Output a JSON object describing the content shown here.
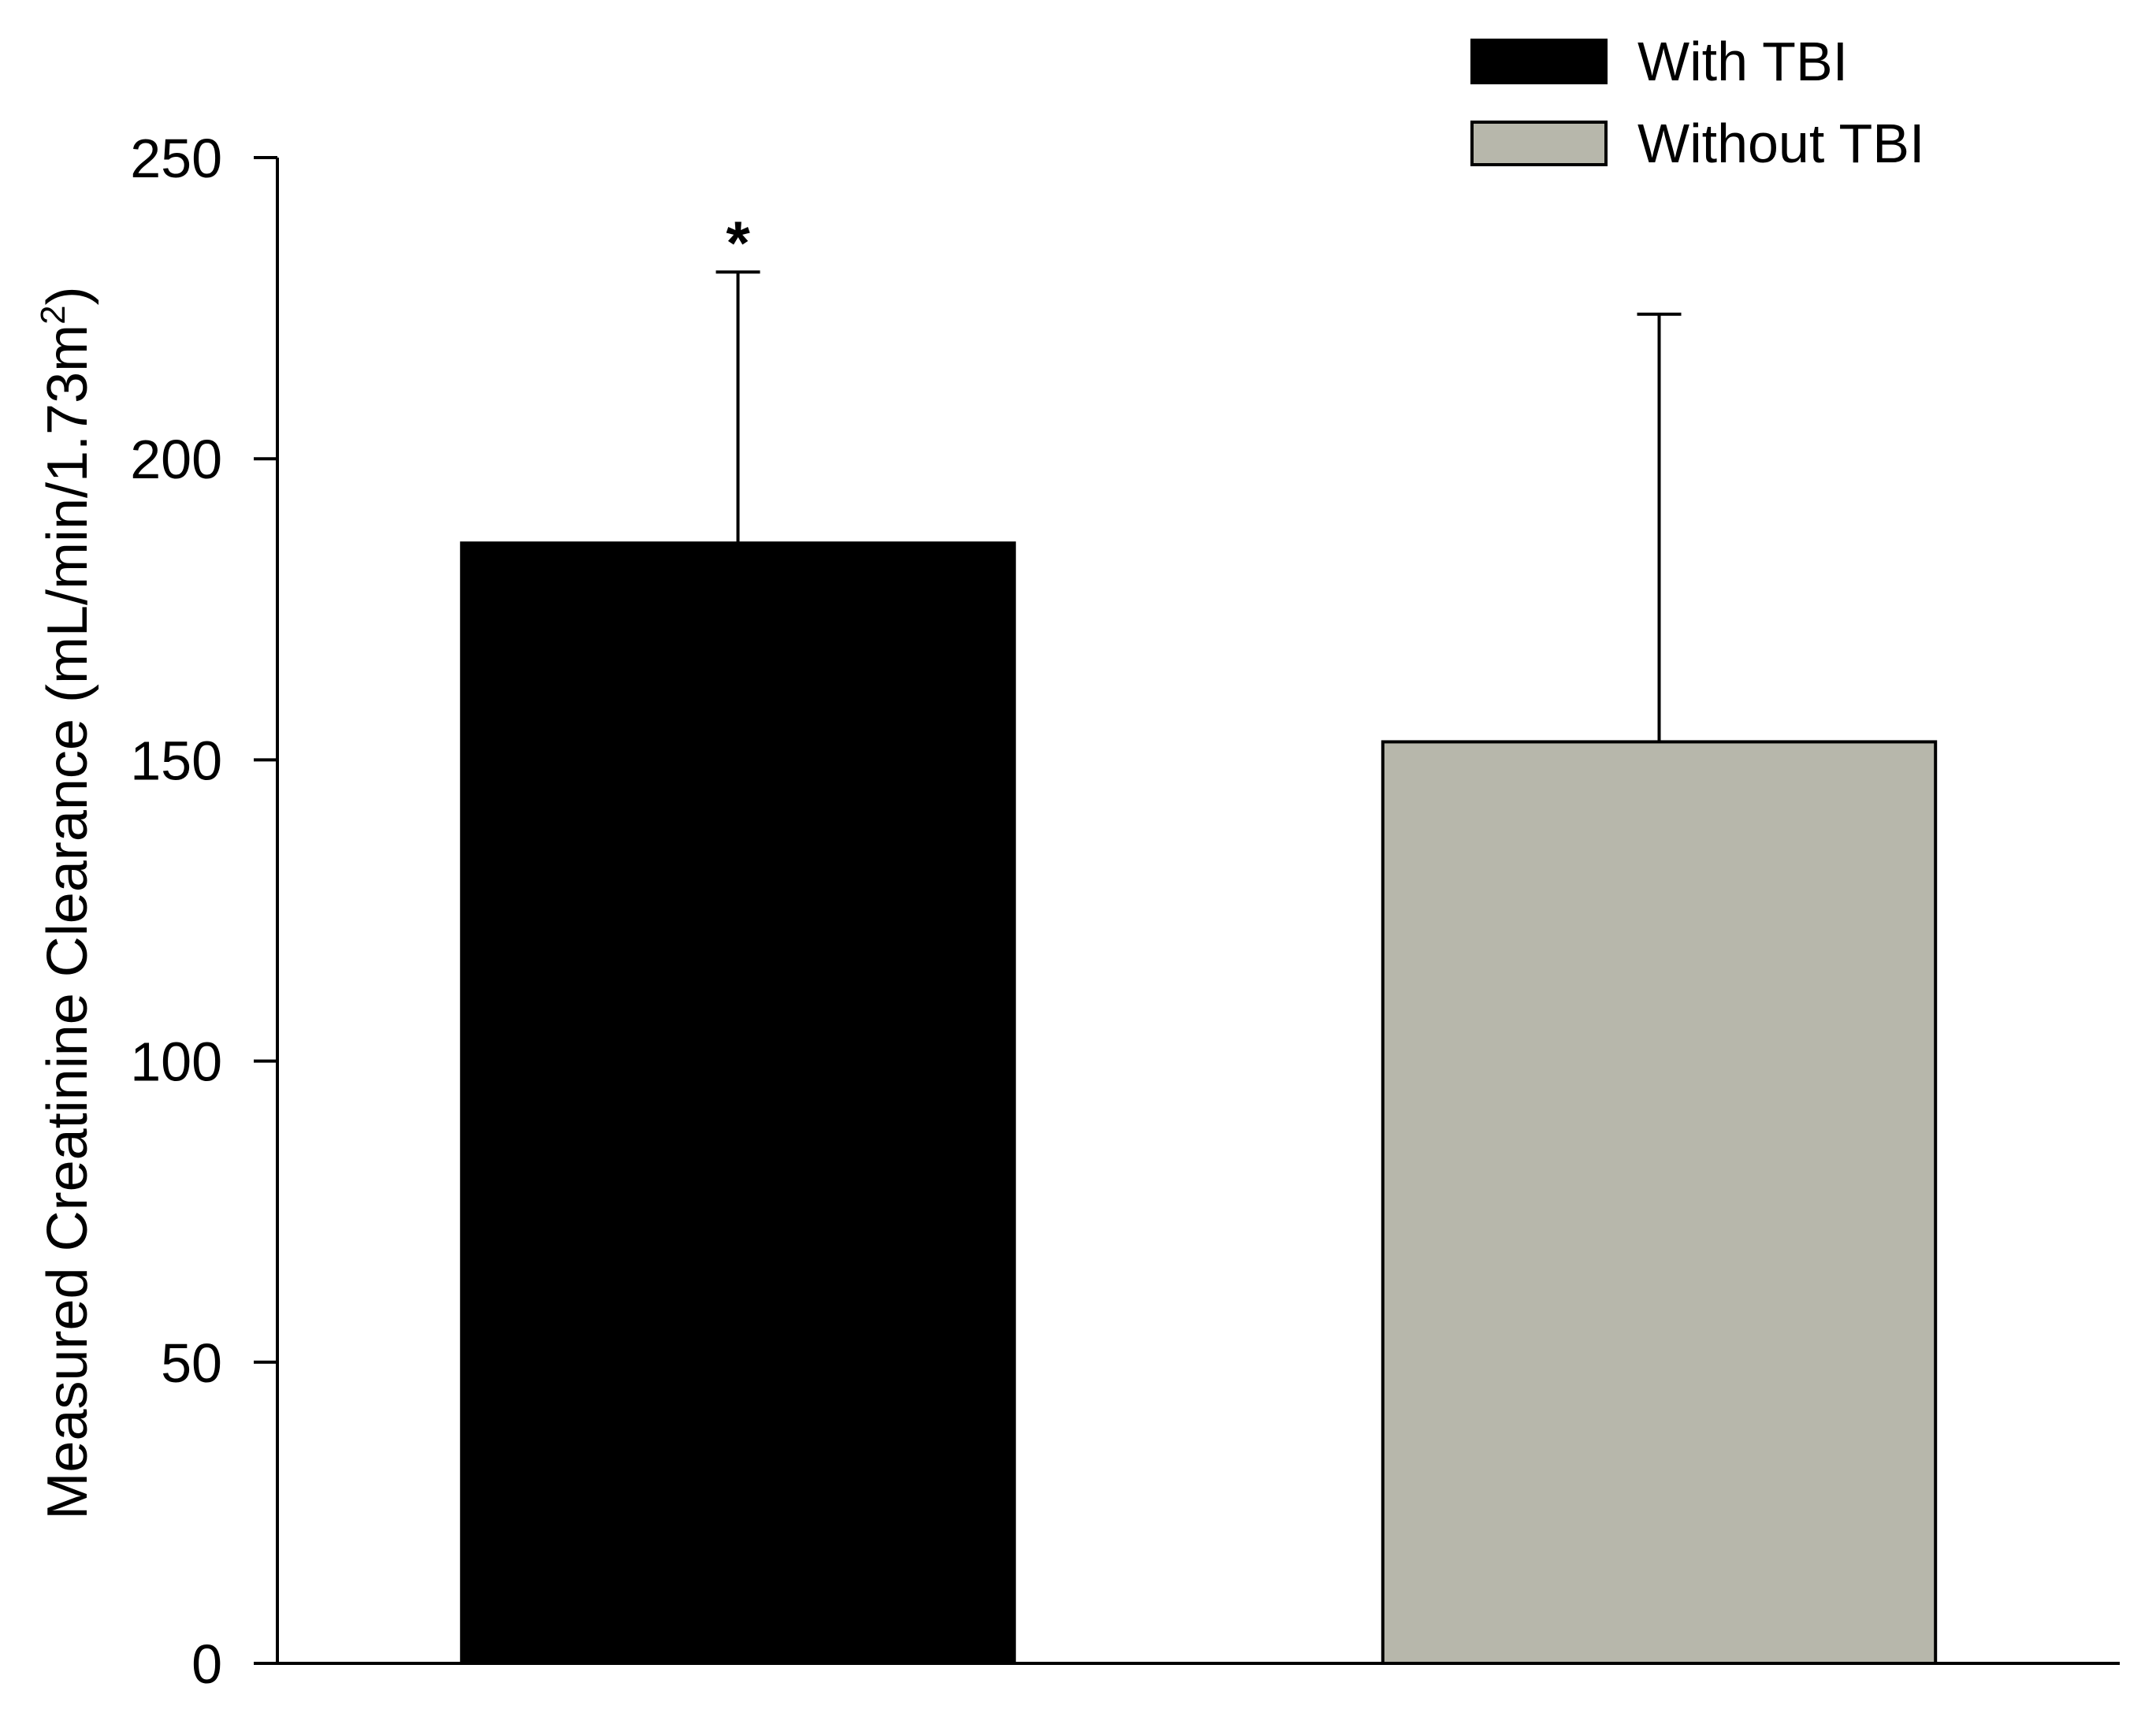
{
  "chart_data": {
    "type": "bar",
    "title": "",
    "xlabel": "",
    "ylabel": "Measured Creatinine Clearance (mL/min/1.73m",
    "ylabel_superscript": "2",
    "ylabel_close": ")",
    "ylim": [
      0,
      250
    ],
    "yticks": [
      "0",
      "50",
      "100",
      "150",
      "200",
      "250"
    ],
    "grid": false,
    "legend_position": "top-right",
    "series": [
      {
        "name": "With TBI",
        "value": 186,
        "error": 45,
        "color": "#000000",
        "annotation": "*"
      },
      {
        "name": "Without TBI",
        "value": 153,
        "error": 71,
        "color": "#b7b7ab",
        "annotation": ""
      }
    ]
  }
}
